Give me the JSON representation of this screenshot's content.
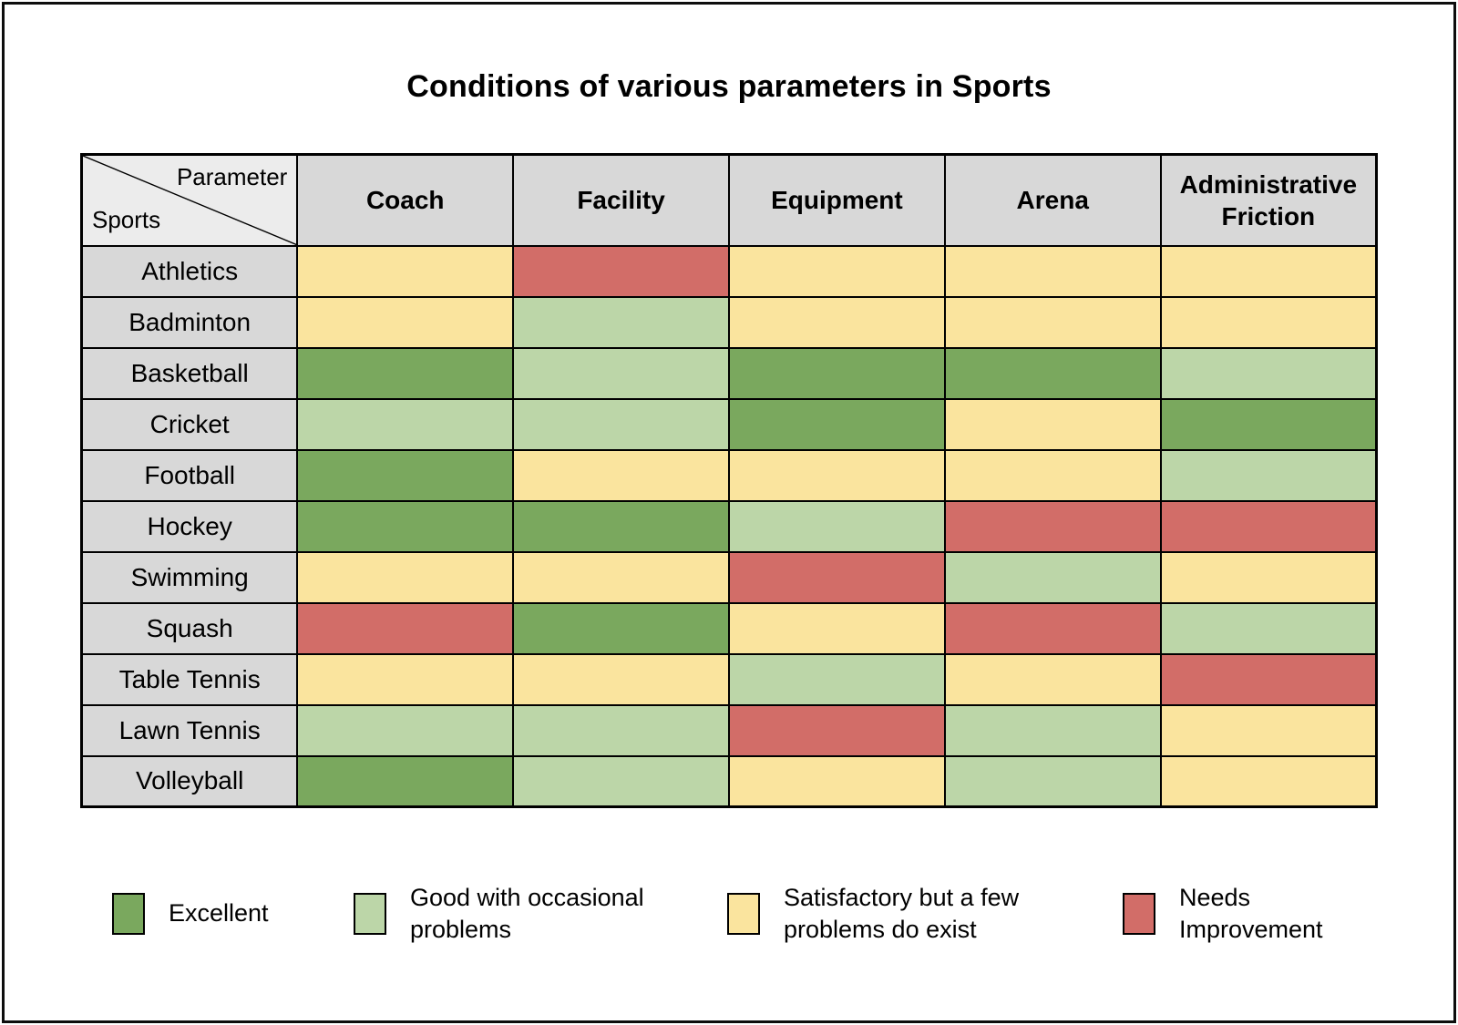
{
  "chart_data": {
    "type": "heatmap",
    "title": "Conditions of various parameters in Sports",
    "corner_labels": {
      "top_right": "Parameter",
      "bottom_left": "Sports"
    },
    "columns": [
      "Coach",
      "Facility",
      "Equipment",
      "Arena",
      "Administrative Friction"
    ],
    "rows": [
      "Athletics",
      "Badminton",
      "Basketball",
      "Cricket",
      "Football",
      "Hockey",
      "Swimming",
      "Squash",
      "Table Tennis",
      "Lawn Tennis",
      "Volleyball"
    ],
    "values": [
      [
        "satisfactory",
        "needs",
        "satisfactory",
        "satisfactory",
        "satisfactory"
      ],
      [
        "satisfactory",
        "good",
        "satisfactory",
        "satisfactory",
        "satisfactory"
      ],
      [
        "excellent",
        "good",
        "excellent",
        "excellent",
        "good"
      ],
      [
        "good",
        "good",
        "excellent",
        "satisfactory",
        "excellent"
      ],
      [
        "excellent",
        "satisfactory",
        "satisfactory",
        "satisfactory",
        "good"
      ],
      [
        "excellent",
        "excellent",
        "good",
        "needs",
        "needs"
      ],
      [
        "satisfactory",
        "satisfactory",
        "needs",
        "good",
        "satisfactory"
      ],
      [
        "needs",
        "excellent",
        "satisfactory",
        "needs",
        "good"
      ],
      [
        "satisfactory",
        "satisfactory",
        "good",
        "satisfactory",
        "needs"
      ],
      [
        "good",
        "good",
        "needs",
        "good",
        "satisfactory"
      ],
      [
        "excellent",
        "good",
        "satisfactory",
        "good",
        "satisfactory"
      ]
    ],
    "legend": [
      {
        "key": "excellent",
        "label": "Excellent",
        "color": "#7AA85E"
      },
      {
        "key": "good",
        "label": "Good with occasional problems",
        "color": "#BCD6A8"
      },
      {
        "key": "satisfactory",
        "label": "Satisfactory but a few problems do exist",
        "color": "#FAE49E"
      },
      {
        "key": "needs",
        "label": "Needs Improvement",
        "color": "#D26D68"
      }
    ],
    "legend_position": "bottom",
    "grid": true
  },
  "colors": {
    "header_bg": "#D8D8D8",
    "corner_bg": "#ECECEC",
    "border": "#000000",
    "page_background": "#FFFFFF"
  }
}
